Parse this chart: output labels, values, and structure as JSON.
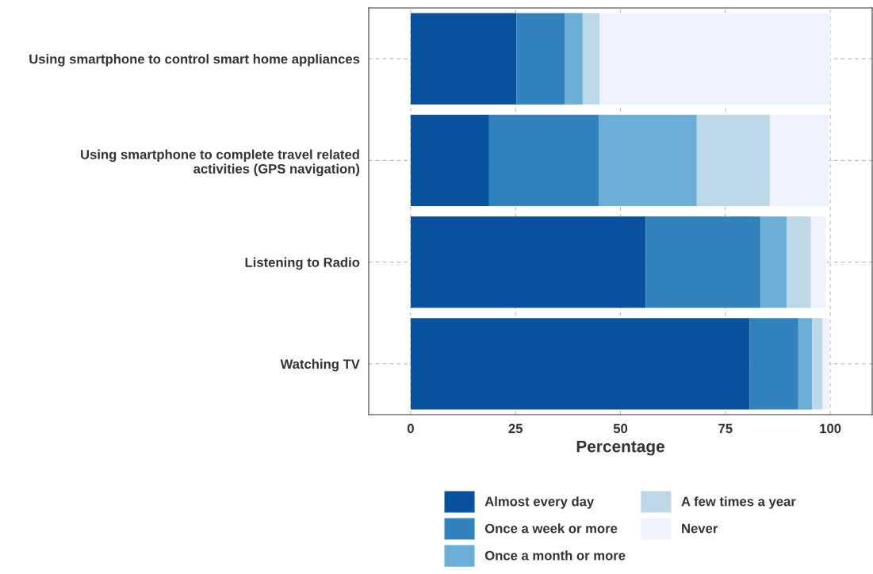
{
  "chart_data": {
    "type": "bar",
    "orientation": "horizontal",
    "stacked": true,
    "categories": [
      "Using smartphone to control smart home appliances",
      "Using smartphone to complete travel related\nactivities (GPS navigation)",
      "Listening to Radio",
      "Watching TV"
    ],
    "series": [
      {
        "name": "Almost every day",
        "color": "#08519c",
        "values": [
          25.2,
          18.7,
          56.0,
          80.8
        ]
      },
      {
        "name": "Once a week or more",
        "color": "#3182bd",
        "values": [
          11.6,
          26.1,
          27.4,
          11.6
        ]
      },
      {
        "name": "Once a month or more",
        "color": "#6baed6",
        "values": [
          4.2,
          23.4,
          6.2,
          3.3
        ]
      },
      {
        "name": "A few times a year",
        "color": "#bdd7e7",
        "values": [
          4.0,
          17.4,
          5.8,
          2.5
        ]
      },
      {
        "name": "Never",
        "color": "#eff3ff",
        "values": [
          55.0,
          14.0,
          3.5,
          1.5
        ]
      }
    ],
    "xlabel": "Percentage",
    "xlim": [
      -10,
      110
    ],
    "xticks": [
      0,
      25,
      50,
      75,
      100
    ],
    "grid": true,
    "legend": "bottom"
  }
}
